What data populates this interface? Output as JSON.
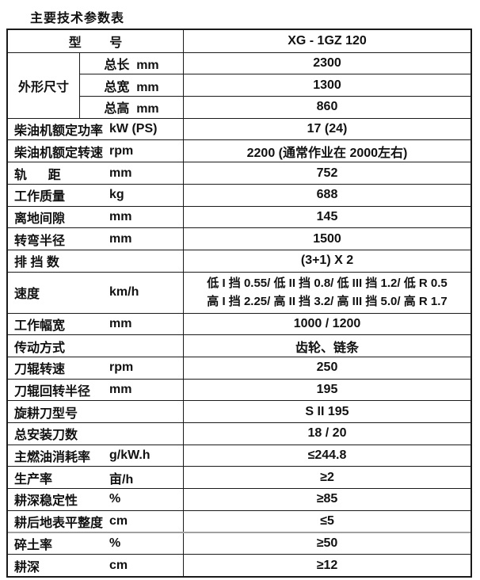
{
  "page": {
    "title": "主要技术参数表"
  },
  "table": {
    "model_row": {
      "label": "型        号",
      "value": "XG - 1GZ 120"
    },
    "dimensions": {
      "group_label": "外形尺寸",
      "rows": [
        {
          "label": "总长  mm",
          "value": "2300"
        },
        {
          "label": "总宽  mm",
          "value": "1300"
        },
        {
          "label": "总高  mm",
          "value": "860"
        }
      ]
    },
    "rows": [
      {
        "name": "柴油机额定功率",
        "unit": "kW (PS)",
        "value": "17 (24)"
      },
      {
        "name": "柴油机额定转速",
        "unit": "rpm",
        "value": "2200 (通常作业在 2000左右)"
      },
      {
        "name": "轨      距",
        "unit": "mm",
        "value": "752"
      },
      {
        "name": "工作质量",
        "unit": "kg",
        "value": "688"
      },
      {
        "name": "离地间隙",
        "unit": "mm",
        "value": "145"
      },
      {
        "name": "转弯半径",
        "unit": "mm",
        "value": "1500"
      },
      {
        "name": "排 挡 数",
        "unit": "",
        "value": "(3+1) X 2"
      },
      {
        "name": "速度",
        "unit": "km/h",
        "value_line1": "低 I 挡 0.55/ 低 II 挡 0.8/ 低 III 挡 1.2/ 低 R 0.5",
        "value_line2": "高 I 挡 2.25/ 高 II 挡 3.2/ 高 III 挡 5.0/ 高 R 1.7"
      },
      {
        "name": "工作幅宽",
        "unit": "mm",
        "value": "1000 / 1200"
      },
      {
        "name": "传动方式",
        "unit": "",
        "value": "齿轮、链条"
      },
      {
        "name": "刀辊转速",
        "unit": "rpm",
        "value": "250"
      },
      {
        "name": "刀辊回转半径",
        "unit": "mm",
        "value": "195"
      },
      {
        "name": "旋耕刀型号",
        "unit": "",
        "value": "S II 195"
      },
      {
        "name": "总安装刀数",
        "unit": "",
        "value": "18 / 20"
      },
      {
        "name": "主燃油消耗率",
        "unit": "g/kW.h",
        "value": "≤244.8"
      },
      {
        "name": "生产率",
        "unit": "亩/h",
        "value": "≥2"
      },
      {
        "name": "耕深稳定性",
        "unit": "%",
        "value": "≥85"
      },
      {
        "name": "耕后地表平整度",
        "unit": "cm",
        "value": "≤5"
      },
      {
        "name": "碎土率",
        "unit": "%",
        "value": "≥50"
      },
      {
        "name": "耕深",
        "unit": "cm",
        "value": "≥12"
      }
    ]
  },
  "colors": {
    "background": "#ffffff",
    "text": "#111111",
    "border": "#1a1a1a",
    "gray_divider": "#a0a0a0"
  }
}
